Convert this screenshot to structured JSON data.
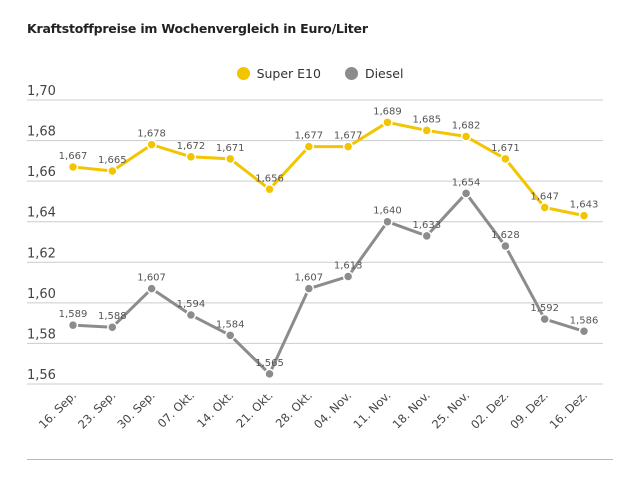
{
  "chart_data": {
    "type": "line",
    "title": "Kraftstoffpreise im Wochenvergleich in Euro/Liter",
    "categories": [
      "16. Sep.",
      "23. Sep.",
      "30. Sep.",
      "07. Okt.",
      "14. Okt.",
      "21. Okt.",
      "28. Okt.",
      "04. Nov.",
      "11. Nov.",
      "18. Nov.",
      "25. Nov.",
      "02. Dez.",
      "09. Dez.",
      "16. Dez."
    ],
    "series": [
      {
        "name": "Super E10",
        "color": "#f2c500",
        "values": [
          1.667,
          1.665,
          1.678,
          1.672,
          1.671,
          1.656,
          1.677,
          1.677,
          1.689,
          1.685,
          1.682,
          1.671,
          1.647,
          1.643
        ]
      },
      {
        "name": "Diesel",
        "color": "#8c8c8c",
        "values": [
          1.589,
          1.588,
          1.607,
          1.594,
          1.584,
          1.565,
          1.607,
          1.613,
          1.64,
          1.633,
          1.654,
          1.628,
          1.592,
          1.586
        ]
      }
    ],
    "ylim": [
      1.56,
      1.7
    ],
    "yticks": [
      "1,56",
      "1,58",
      "1,60",
      "1,62",
      "1,64",
      "1,66",
      "1,68",
      "1,70"
    ],
    "xlabel": "",
    "ylabel": "",
    "grid": true,
    "legend": "top-center",
    "decimal_separator": ","
  }
}
